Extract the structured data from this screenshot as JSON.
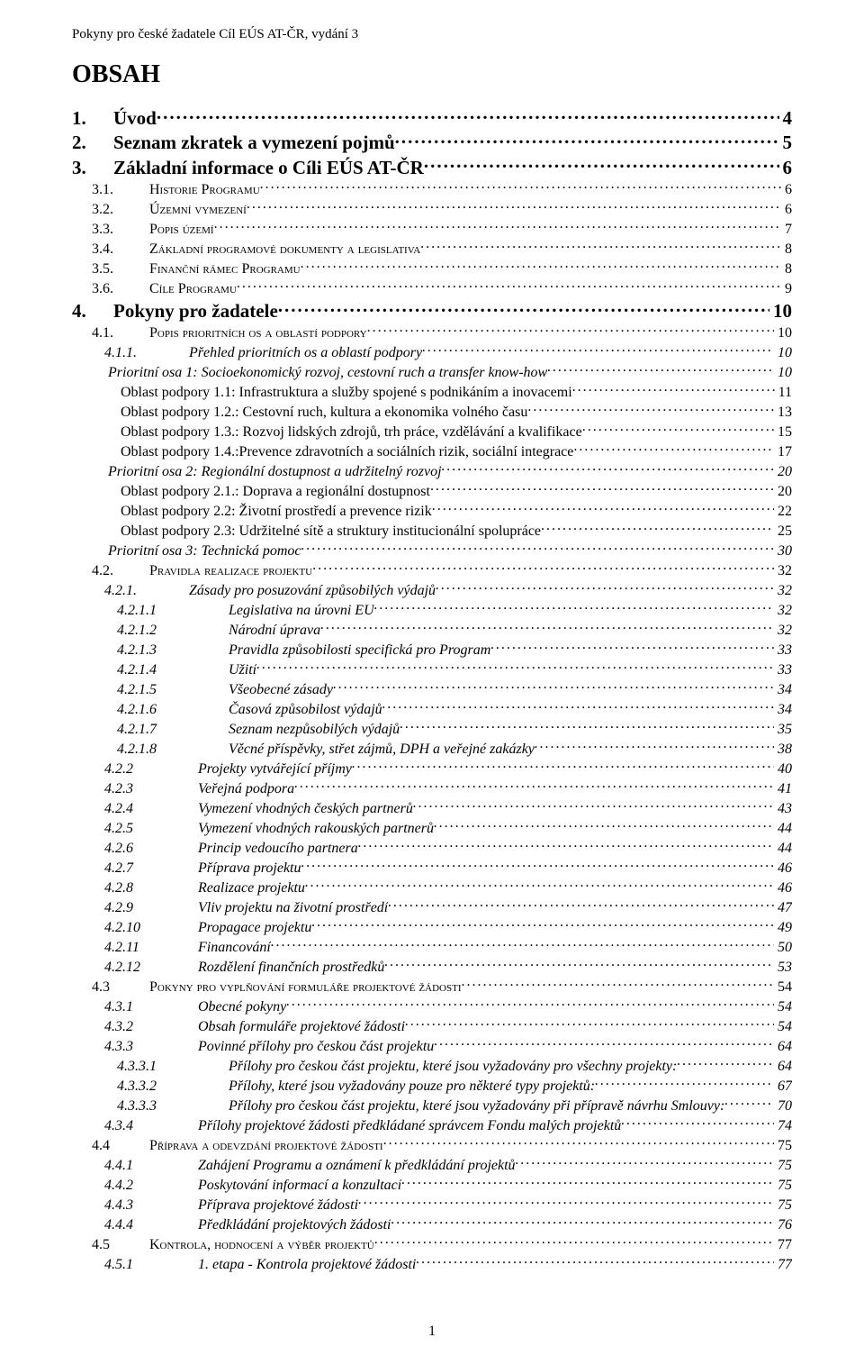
{
  "header": "Pokyny pro české žadatele Cíl EÚS AT-ČR, vydání 3",
  "tocTitle": "OBSAH",
  "footerPage": "1",
  "entries": [
    {
      "level": "lvl1",
      "num": "1.",
      "label": "Úvod",
      "page": "4"
    },
    {
      "level": "lvl1",
      "num": "2.",
      "label": "Seznam zkratek a vymezení pojmů",
      "page": "5"
    },
    {
      "level": "lvl1",
      "num": "3.",
      "label": "Základní informace o Cíli EÚS AT-ČR",
      "page": "6"
    },
    {
      "level": "lvl2 lvl2-sc",
      "num": "3.1.",
      "label": "Historie Programu",
      "page": "6"
    },
    {
      "level": "lvl2 lvl2-sc",
      "num": "3.2.",
      "label": "Územní vymezení",
      "page": "6"
    },
    {
      "level": "lvl2 lvl2-sc",
      "num": "3.3.",
      "label": "Popis území",
      "page": "7"
    },
    {
      "level": "lvl2 lvl2-sc",
      "num": "3.4.",
      "label": "Základní programové dokumenty a legislativa",
      "page": "8"
    },
    {
      "level": "lvl2 lvl2-sc",
      "num": "3.5.",
      "label": "Finanční rámec Programu",
      "page": "8"
    },
    {
      "level": "lvl2 lvl2-sc",
      "num": "3.6.",
      "label": "Cíle Programu",
      "page": "9"
    },
    {
      "level": "lvl1",
      "num": "4.",
      "label": "Pokyny pro žadatele",
      "page": "10"
    },
    {
      "level": "lvl2 lvl2-sc",
      "num": "4.1.",
      "label": "Popis prioritních os a oblastí podpory",
      "page": "10"
    },
    {
      "level": "lvl3",
      "num": "4.1.1.",
      "label": "Přehled prioritních os a oblastí podpory",
      "page": "10"
    },
    {
      "level": "lvl-prio",
      "num": "",
      "label": "Prioritní osa 1: Socioekonomický rozvoj, cestovní ruch a transfer know-how",
      "page": "10"
    },
    {
      "level": "lvl-oblast",
      "num": "",
      "label": "Oblast podpory 1.1: Infrastruktura a služby spojené s podnikáním a inovacemi",
      "page": "11"
    },
    {
      "level": "lvl-oblast",
      "num": "",
      "label": "Oblast podpory 1.2.: Cestovní ruch, kultura a ekonomika volného času",
      "page": "13"
    },
    {
      "level": "lvl-oblast",
      "num": "",
      "label": "Oblast podpory 1.3.: Rozvoj lidských zdrojů, trh práce, vzdělávání a kvalifikace",
      "page": "15"
    },
    {
      "level": "lvl-oblast",
      "num": "",
      "label": "Oblast podpory 1.4.:Prevence zdravotních a sociálních rizik, sociální integrace",
      "page": "17"
    },
    {
      "level": "lvl-prio",
      "num": "",
      "label": "Prioritní osa 2: Regionální dostupnost a udržitelný rozvoj",
      "page": "20"
    },
    {
      "level": "lvl-oblast",
      "num": "",
      "label": "Oblast podpory 2.1.: Doprava a regionální dostupnost",
      "page": "20"
    },
    {
      "level": "lvl-oblast",
      "num": "",
      "label": "Oblast podpory 2.2: Životní prostředí a prevence rizik",
      "page": "22"
    },
    {
      "level": "lvl-oblast",
      "num": "",
      "label": "Oblast podpory 2.3: Udržitelné sítě a struktury institucionální spolupráce",
      "page": "25"
    },
    {
      "level": "lvl-prio",
      "num": "",
      "label": "Prioritní osa 3: Technická pomoc",
      "page": "30"
    },
    {
      "level": "lvl2 lvl2-sc",
      "num": "4.2.",
      "label": "Pravidla realizace projektu",
      "page": "32"
    },
    {
      "level": "lvl3",
      "num": "4.2.1.",
      "label": "Zásady pro posuzování způsobilých výdajů",
      "page": "32"
    },
    {
      "level": "lvl4",
      "num": "4.2.1.1",
      "label": "Legislativa na úrovni  EU",
      "page": "32"
    },
    {
      "level": "lvl4",
      "num": "4.2.1.2",
      "label": "Národní úprava",
      "page": "32"
    },
    {
      "level": "lvl4",
      "num": "4.2.1.3",
      "label": "Pravidla způsobilosti specifická pro Program",
      "page": "33"
    },
    {
      "level": "lvl4",
      "num": "4.2.1.4",
      "label": "Užití",
      "page": "33"
    },
    {
      "level": "lvl4",
      "num": "4.2.1.5",
      "label": "Všeobecné zásady",
      "page": "34"
    },
    {
      "level": "lvl4",
      "num": "4.2.1.6",
      "label": "Časová způsobilost výdajů",
      "page": "34"
    },
    {
      "level": "lvl4",
      "num": "4.2.1.7",
      "label": "Seznam nezpůsobilých výdajů",
      "page": "35"
    },
    {
      "level": "lvl4",
      "num": "4.2.1.8",
      "label": "Věcné příspěvky, střet zájmů, DPH a veřejné zakázky",
      "page": "38"
    },
    {
      "level": "lvl3b",
      "num": "4.2.2",
      "label": "Projekty vytvářející příjmy",
      "page": "40"
    },
    {
      "level": "lvl3b",
      "num": "4.2.3",
      "label": "Veřejná podpora",
      "page": "41"
    },
    {
      "level": "lvl3b",
      "num": "4.2.4",
      "label": "Vymezení vhodných českých partnerů",
      "page": "43"
    },
    {
      "level": "lvl3b",
      "num": "4.2.5",
      "label": "Vymezení vhodných rakouských partnerů",
      "page": "44"
    },
    {
      "level": "lvl3b",
      "num": "4.2.6",
      "label": "Princip vedoucího partnera",
      "page": "44"
    },
    {
      "level": "lvl3b",
      "num": "4.2.7",
      "label": "Příprava  projektu",
      "page": "46"
    },
    {
      "level": "lvl3b",
      "num": "4.2.8",
      "label": "Realizace projektu",
      "page": "46"
    },
    {
      "level": "lvl3b",
      "num": "4.2.9",
      "label": "Vliv projektu na životní prostředí",
      "page": "47"
    },
    {
      "level": "lvl3b",
      "num": "4.2.10",
      "label": "Propagace projektu",
      "page": "49"
    },
    {
      "level": "lvl3b",
      "num": "4.2.11",
      "label": "Financování",
      "page": "50"
    },
    {
      "level": "lvl3b",
      "num": "4.2.12",
      "label": "Rozdělení finančních prostředků",
      "page": "53"
    },
    {
      "level": "lvl2 lvl2-sc",
      "num": "4.3",
      "label": "Pokyny pro vyplňování formuláře projektové žádosti",
      "page": "54"
    },
    {
      "level": "lvl3b",
      "num": "4.3.1",
      "label": "Obecné pokyny",
      "page": "54"
    },
    {
      "level": "lvl3b",
      "num": "4.3.2",
      "label": "Obsah formuláře projektové žádosti",
      "page": "54"
    },
    {
      "level": "lvl3b",
      "num": "4.3.3",
      "label": "Povinné přílohy pro českou část projektu",
      "page": "64"
    },
    {
      "level": "lvl4",
      "num": "4.3.3.1",
      "label": "Přílohy pro českou část projektu, které jsou vyžadovány pro všechny projekty:",
      "page": "64"
    },
    {
      "level": "lvl4",
      "num": "4.3.3.2",
      "label": "Přílohy, které jsou vyžadovány pouze pro některé typy projektů:",
      "page": "67"
    },
    {
      "level": "lvl4",
      "num": "4.3.3.3",
      "label": "Přílohy pro českou část projektu, které jsou vyžadovány při přípravě návrhu Smlouvy:",
      "page": "70"
    },
    {
      "level": "lvl3b",
      "num": "4.3.4",
      "label": "Přílohy projektové žádosti předkládané správcem Fondu malých projektů",
      "page": "74"
    },
    {
      "level": "lvl2 lvl2-sc",
      "num": "4.4",
      "label": "Příprava a odevzdání projektové žádosti",
      "page": "75"
    },
    {
      "level": "lvl3b",
      "num": "4.4.1",
      "label": "Zahájení Programu a oznámení k předkládání projektů",
      "page": "75"
    },
    {
      "level": "lvl3b",
      "num": "4.4.2",
      "label": "Poskytování informací a konzultací",
      "page": "75"
    },
    {
      "level": "lvl3b",
      "num": "4.4.3",
      "label": "Příprava projektové žádosti",
      "page": "75"
    },
    {
      "level": "lvl3b",
      "num": "4.4.4",
      "label": "Předkládání projektových žádostí",
      "page": "76"
    },
    {
      "level": "lvl2 lvl2-sc",
      "num": "4.5",
      "label": "Kontrola, hodnocení  a výběr projektů",
      "page": "77"
    },
    {
      "level": "lvl3b",
      "num": "4.5.1",
      "label": "1. etapa - Kontrola projektové žádosti",
      "page": "77"
    }
  ]
}
